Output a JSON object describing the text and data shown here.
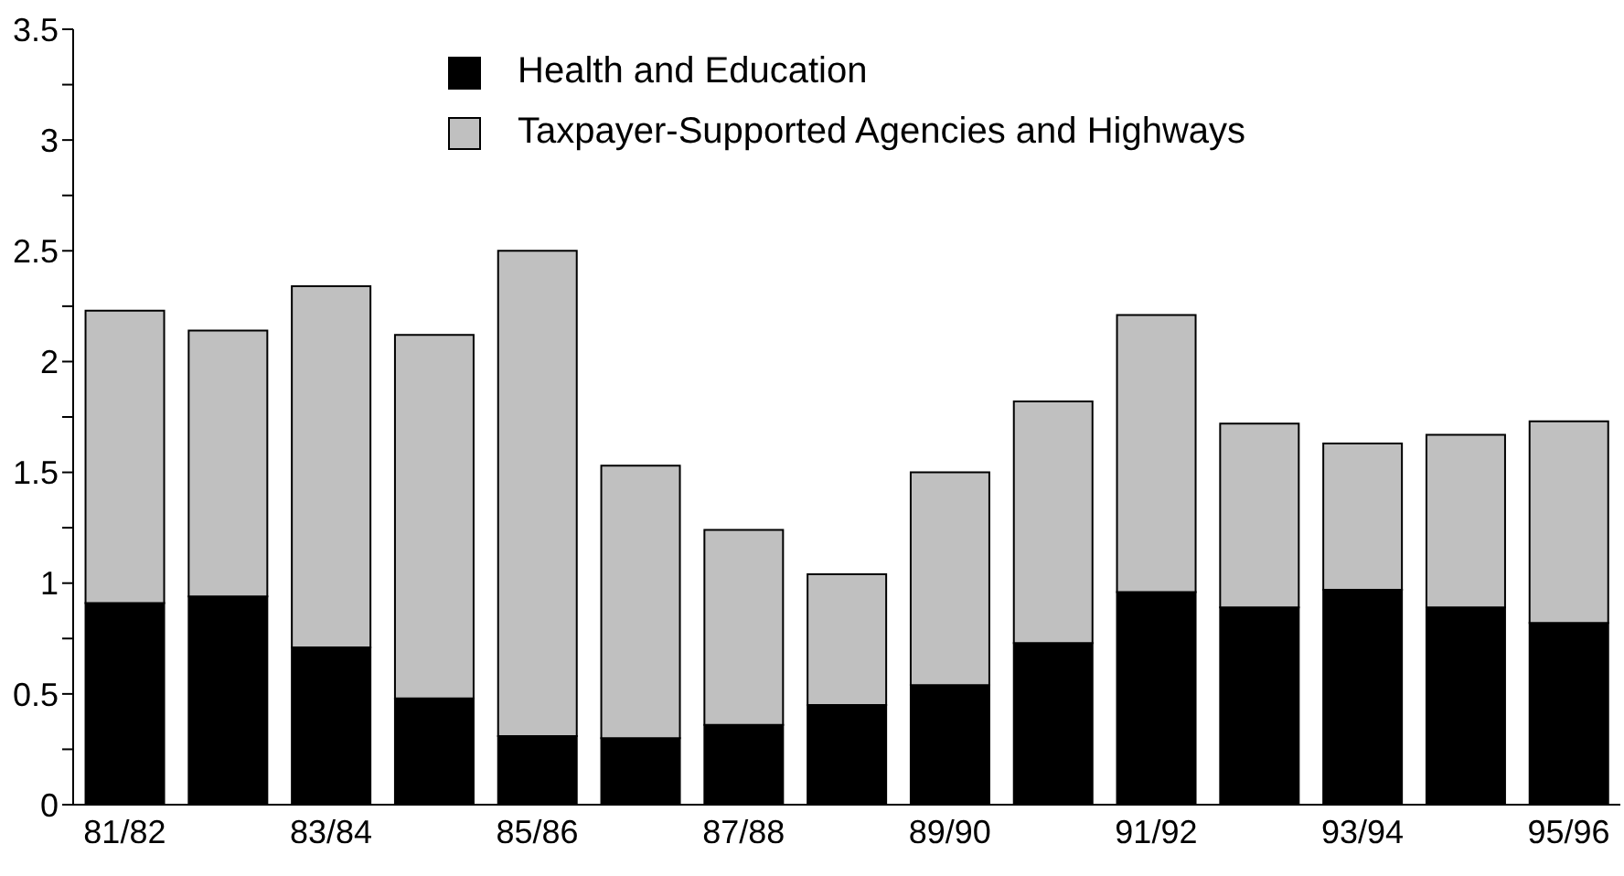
{
  "chart_data": {
    "type": "bar",
    "stacked": true,
    "categories": [
      "81/82",
      null,
      "83/84",
      null,
      "85/86",
      null,
      "87/88",
      null,
      "89/90",
      null,
      "91/92",
      null,
      "93/94",
      null,
      "95/96"
    ],
    "series": [
      {
        "name": "Health and Education",
        "color": "#000000",
        "values": [
          0.91,
          0.94,
          0.71,
          0.48,
          0.31,
          0.3,
          0.36,
          0.45,
          0.54,
          0.73,
          0.96,
          0.89,
          0.97,
          0.89,
          0.82
        ]
      },
      {
        "name": "Taxpayer-Supported Agencies and Highways",
        "color": "#c0c0c0",
        "values": [
          1.32,
          1.2,
          1.63,
          1.64,
          2.19,
          1.23,
          0.88,
          0.59,
          0.96,
          1.09,
          1.25,
          0.83,
          0.66,
          0.78,
          0.91
        ]
      }
    ],
    "ylim": [
      0,
      3.5
    ],
    "yticks": [
      0,
      {
        "value": 0.25,
        "label": null
      },
      0.5,
      {
        "value": 0.75,
        "label": null
      },
      1,
      {
        "value": 1.25,
        "label": null
      },
      1.5,
      {
        "value": 1.75,
        "label": null
      },
      2,
      {
        "value": 2.25,
        "label": null
      },
      2.5,
      {
        "value": 2.75,
        "label": null
      },
      3,
      {
        "value": 3.25,
        "label": null
      },
      3.5
    ],
    "grid": false,
    "legend": "top left"
  }
}
